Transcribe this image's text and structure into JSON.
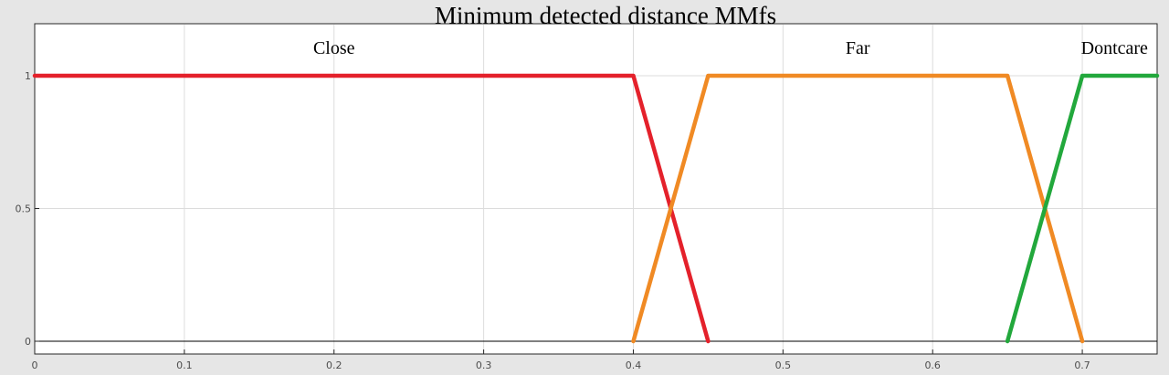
{
  "chart_data": {
    "type": "line",
    "title": "Minimum detected distance MMfs",
    "xlabel": "",
    "ylabel": "",
    "xlim": [
      0,
      0.75
    ],
    "ylim": [
      0,
      1.2
    ],
    "x_ticks": [
      0,
      0.1,
      0.2,
      0.3,
      0.4,
      0.5,
      0.6,
      0.7
    ],
    "x_tick_labels": [
      "0",
      "0.1",
      "0.2",
      "0.3",
      "0.4",
      "0.5",
      "0.6",
      "0.7"
    ],
    "y_ticks": [
      0,
      0.5,
      1
    ],
    "y_tick_labels": [
      "0",
      "0.5",
      "1"
    ],
    "grid": true,
    "series": [
      {
        "name": "Close",
        "color": "#e4212b",
        "x": [
          0,
          0.4,
          0.45
        ],
        "y": [
          1,
          1,
          0
        ]
      },
      {
        "name": "Far",
        "color": "#f08a24",
        "x": [
          0.4,
          0.45,
          0.65,
          0.7
        ],
        "y": [
          0,
          1,
          1,
          0
        ]
      },
      {
        "name": "Dontcare",
        "color": "#22a83c",
        "x": [
          0.65,
          0.7,
          0.75
        ],
        "y": [
          0,
          1,
          1
        ]
      }
    ]
  }
}
